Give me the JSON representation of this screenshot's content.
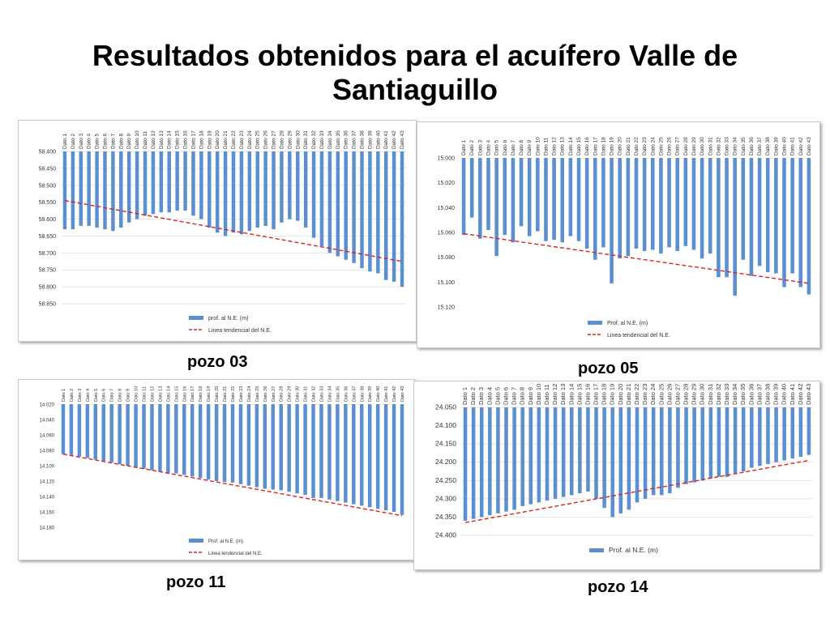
{
  "title": "Resultados obtenidos para el acuífero Valle de Santiaguillo",
  "colors": {
    "bar": "#5b8fcf",
    "trend": "#e02020",
    "grid": "#d9d9d9",
    "axis_text": "#333333"
  },
  "chart_data": [
    {
      "type": "bar",
      "caption": "pozo 03",
      "categories": [
        "Dato 1",
        "Dato 2",
        "Dato 3",
        "Dato 4",
        "Dato 5",
        "Dato 6",
        "Dato 7",
        "Dato 8",
        "Dato 9",
        "Dato 10",
        "Dato 11",
        "Dato 12",
        "Dato 13",
        "Dato 14",
        "Dato 15",
        "Dato 16",
        "Dato 17",
        "Dato 18",
        "Dato 19",
        "Dato 20",
        "Dato 21",
        "Dato 22",
        "Dato 23",
        "Dato 24",
        "Dato 25",
        "Dato 26",
        "Dato 27",
        "Dato 28",
        "Dato 29",
        "Dato 30",
        "Dato 31",
        "Dato 32",
        "Dato 33",
        "Dato 34",
        "Dato 35",
        "Dato 36",
        "Dato 37",
        "Dato 38",
        "Dato 39",
        "Dato 40",
        "Dato 41",
        "Dato 42",
        "Dato 43"
      ],
      "series": [
        {
          "name": "prof. al N.E. (m)",
          "values": [
            58.63,
            58.63,
            58.62,
            58.62,
            58.625,
            58.63,
            58.635,
            58.625,
            58.61,
            58.6,
            58.59,
            58.585,
            58.58,
            58.58,
            58.575,
            58.575,
            58.59,
            58.6,
            58.625,
            58.64,
            58.65,
            58.64,
            58.645,
            58.635,
            58.625,
            58.62,
            58.63,
            58.61,
            58.6,
            58.605,
            58.625,
            58.655,
            58.68,
            58.7,
            58.71,
            58.72,
            58.73,
            58.745,
            58.755,
            58.76,
            58.78,
            58.785,
            58.8
          ]
        }
      ],
      "trend": {
        "name": "Linea tendencial del N.E.",
        "start": 58.545,
        "end": 58.725
      },
      "y_ticks": [
        "58.400",
        "58.450",
        "58.500",
        "58.550",
        "58.600",
        "58.650",
        "58.700",
        "58.750",
        "58.800",
        "58.850"
      ],
      "ylim": [
        58.4,
        58.85
      ],
      "reversed_axis": true,
      "grid": true,
      "legend_position": "bottom"
    },
    {
      "type": "bar",
      "caption": "pozo 05",
      "categories": [
        "Dato 1",
        "Dato 2",
        "Dato 3",
        "Dato 4",
        "Dato 5",
        "Dato 6",
        "Dato 7",
        "Dato 8",
        "Dato 9",
        "Dato 10",
        "Dato 11",
        "Dato 12",
        "Dato 13",
        "Dato 14",
        "Dato 15",
        "Dato 16",
        "Dato 17",
        "Dato 18",
        "Dato 19",
        "Dato 20",
        "Dato 21",
        "Dato 22",
        "Dato 23",
        "Dato 24",
        "Dato 25",
        "Dato 26",
        "Dato 27",
        "Dato 28",
        "Dato 29",
        "Dato 30",
        "Dato 31",
        "Dato 32",
        "Dato 33",
        "Dato 34",
        "Dato 35",
        "Dato 36",
        "Dato 37",
        "Dato 38",
        "Dato 39",
        "Dato 40",
        "Dato 41",
        "Dato 42",
        "Dato 43"
      ],
      "series": [
        {
          "name": "Prof. al N.E. (m)",
          "values": [
            15.062,
            15.048,
            15.065,
            15.058,
            15.079,
            15.062,
            15.068,
            15.055,
            15.063,
            15.059,
            15.067,
            15.066,
            15.068,
            15.063,
            15.067,
            15.073,
            15.082,
            15.072,
            15.101,
            15.081,
            15.079,
            15.073,
            15.075,
            15.074,
            15.077,
            15.072,
            15.075,
            15.071,
            15.074,
            15.081,
            15.077,
            15.096,
            15.096,
            15.111,
            15.082,
            15.095,
            15.087,
            15.092,
            15.093,
            15.104,
            15.093,
            15.104,
            15.11
          ]
        }
      ],
      "trend": {
        "name": "Linea tendencial del N.E.",
        "start": 15.061,
        "end": 15.101
      },
      "y_ticks": [
        "15.000",
        "15.020",
        "15.040",
        "15.060",
        "15.080",
        "15.100",
        "15.120"
      ],
      "ylim": [
        15.0,
        15.12
      ],
      "reversed_axis": true,
      "grid": false,
      "legend_position": "bottom"
    },
    {
      "type": "bar",
      "caption": "pozo 11",
      "categories": [
        "Dato 1",
        "Dato 2",
        "Dato 3",
        "Dato 4",
        "Dato 5",
        "Dato 6",
        "Dato 7",
        "Dato 8",
        "Dato 9",
        "Dato 10",
        "Dato 11",
        "Dato 12",
        "Dato 13",
        "Dato 14",
        "Dato 15",
        "Dato 16",
        "Dato 17",
        "Dato 18",
        "Dato 19",
        "Dato 20",
        "Dato 21",
        "Dato 22",
        "Dato 23",
        "Dato 24",
        "Dato 25",
        "Dato 26",
        "Dato 27",
        "Dato 28",
        "Dato 29",
        "Dato 30",
        "Dato 31",
        "Dato 32",
        "Dato 33",
        "Dato 34",
        "Dato 35",
        "Dato 36",
        "Dato 37",
        "Dato 38",
        "Dato 39",
        "Dato 40",
        "Dato 41",
        "Dato 42",
        "Dato 43"
      ],
      "series": [
        {
          "name": "Prof. al N.E. (m)",
          "values": [
            14.085,
            14.086,
            14.088,
            14.09,
            14.092,
            14.094,
            14.096,
            14.098,
            14.1,
            14.102,
            14.104,
            14.106,
            14.108,
            14.11,
            14.11,
            14.112,
            14.114,
            14.116,
            14.118,
            14.12,
            14.121,
            14.122,
            14.124,
            14.126,
            14.128,
            14.13,
            14.131,
            14.132,
            14.134,
            14.136,
            14.138,
            14.142,
            14.142,
            14.144,
            14.146,
            14.148,
            14.15,
            14.152,
            14.154,
            14.156,
            14.158,
            14.16,
            14.164
          ]
        }
      ],
      "trend": {
        "name": "Linea tendencial del N.E.",
        "start": 14.085,
        "end": 14.165
      },
      "y_ticks": [
        "14.020",
        "14.040",
        "14.060",
        "14.080",
        "14.100",
        "14.120",
        "14.140",
        "14.160",
        "14.180"
      ],
      "ylim": [
        14.02,
        14.18
      ],
      "reversed_axis": true,
      "grid": false,
      "legend_position": "bottom"
    },
    {
      "type": "bar",
      "caption": "pozo 14",
      "categories": [
        "Dato 1",
        "Dato 2",
        "Dato 3",
        "Dato 4",
        "Dato 5",
        "Dato 6",
        "Dato 7",
        "Dato 8",
        "Dato 9",
        "Dato 10",
        "Dato 11",
        "Dato 12",
        "Dato 13",
        "Dato 14",
        "Dato 15",
        "Dato 16",
        "Dato 17",
        "Dato 18",
        "Dato 19",
        "Dato 20",
        "Dato 21",
        "Dato 22",
        "Dato 23",
        "Dato 24",
        "Dato 25",
        "Dato 26",
        "Dato 27",
        "Dato 28",
        "Dato 29",
        "Dato 30",
        "Dato 31",
        "Dato 32",
        "Dato 33",
        "Dato 34",
        "Dato 35",
        "Dato 36",
        "Dato 37",
        "Dato 38",
        "Dato 39",
        "Dato 40",
        "Dato 41",
        "Dato 42",
        "Dato 43"
      ],
      "series": [
        {
          "name": "Prof. al N.E. (m)",
          "values": [
            24.36,
            24.355,
            24.35,
            24.345,
            24.34,
            24.335,
            24.33,
            24.32,
            24.315,
            24.31,
            24.305,
            24.3,
            24.295,
            24.29,
            24.285,
            24.28,
            24.3,
            24.325,
            24.35,
            24.34,
            24.33,
            24.31,
            24.3,
            24.29,
            24.29,
            24.285,
            24.27,
            24.26,
            24.255,
            24.25,
            24.245,
            24.24,
            24.24,
            24.23,
            24.225,
            24.215,
            24.21,
            24.205,
            24.2,
            24.195,
            24.19,
            24.185,
            24.18
          ]
        }
      ],
      "trend": {
        "name": "",
        "start": 24.365,
        "end": 24.195
      },
      "y_ticks": [
        "24.050",
        "24.100",
        "24.150",
        "24.200",
        "24.250",
        "24.300",
        "24.350",
        "24.400"
      ],
      "ylim": [
        24.05,
        24.4
      ],
      "reversed_axis": true,
      "grid": true,
      "legend_position": "bottom"
    }
  ]
}
